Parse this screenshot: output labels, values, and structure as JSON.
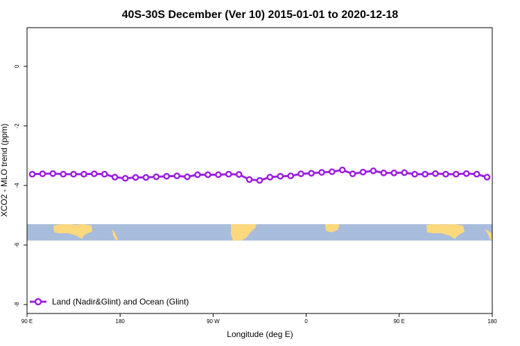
{
  "chart_data": {
    "type": "line",
    "title": "40S-30S December (Ver 10)   2015-01-01 to 2020-12-18",
    "xlabel": "Longitude (deg E)",
    "ylabel": "XCO2 - MLO trend (ppm)",
    "xlim": [
      -90,
      180
    ],
    "ylim": [
      -8.3,
      1.3
    ],
    "x_ticks": [
      {
        "value": -90,
        "label": "90 E"
      },
      {
        "value": -36,
        "label": "180"
      },
      {
        "value": 18,
        "label": "90 W"
      },
      {
        "value": 72,
        "label": "0"
      },
      {
        "value": 126,
        "label": "90 E"
      },
      {
        "value": 180,
        "label": "180"
      }
    ],
    "y_ticks": [
      {
        "value": 0,
        "label": "0"
      },
      {
        "value": -2,
        "label": "-2"
      },
      {
        "value": -4,
        "label": "-4"
      },
      {
        "value": -6,
        "label": "-6"
      },
      {
        "value": -8,
        "label": "-8"
      }
    ],
    "grid": false,
    "legend_position": "bottom-left",
    "map_strip": {
      "y_top": -5.3,
      "y_bottom": -5.85,
      "ocean_color": "#a8bcdc",
      "land_color": "#fcd97d"
    },
    "series": [
      {
        "name": "Land (Nadir&Glint) and Ocean (Glint)",
        "color": "#9b20e0",
        "x": [
          -87,
          -81,
          -75,
          -69,
          -63,
          -57,
          -51,
          -45,
          -39,
          -33,
          -27,
          -21,
          -15,
          -9,
          -3,
          3,
          9,
          15,
          21,
          27,
          33,
          39,
          45,
          51,
          57,
          63,
          69,
          75,
          81,
          87,
          93,
          99,
          105,
          111,
          117,
          123,
          129,
          135,
          141,
          147,
          153,
          159,
          165,
          171,
          177
        ],
        "values": [
          -3.62,
          -3.61,
          -3.6,
          -3.62,
          -3.62,
          -3.62,
          -3.61,
          -3.62,
          -3.72,
          -3.76,
          -3.73,
          -3.73,
          -3.71,
          -3.69,
          -3.68,
          -3.71,
          -3.64,
          -3.64,
          -3.64,
          -3.62,
          -3.63,
          -3.8,
          -3.83,
          -3.72,
          -3.69,
          -3.68,
          -3.61,
          -3.59,
          -3.56,
          -3.54,
          -3.48,
          -3.61,
          -3.55,
          -3.51,
          -3.58,
          -3.58,
          -3.57,
          -3.62,
          -3.62,
          -3.6,
          -3.62,
          -3.62,
          -3.6,
          -3.62,
          -3.72
        ]
      }
    ]
  }
}
